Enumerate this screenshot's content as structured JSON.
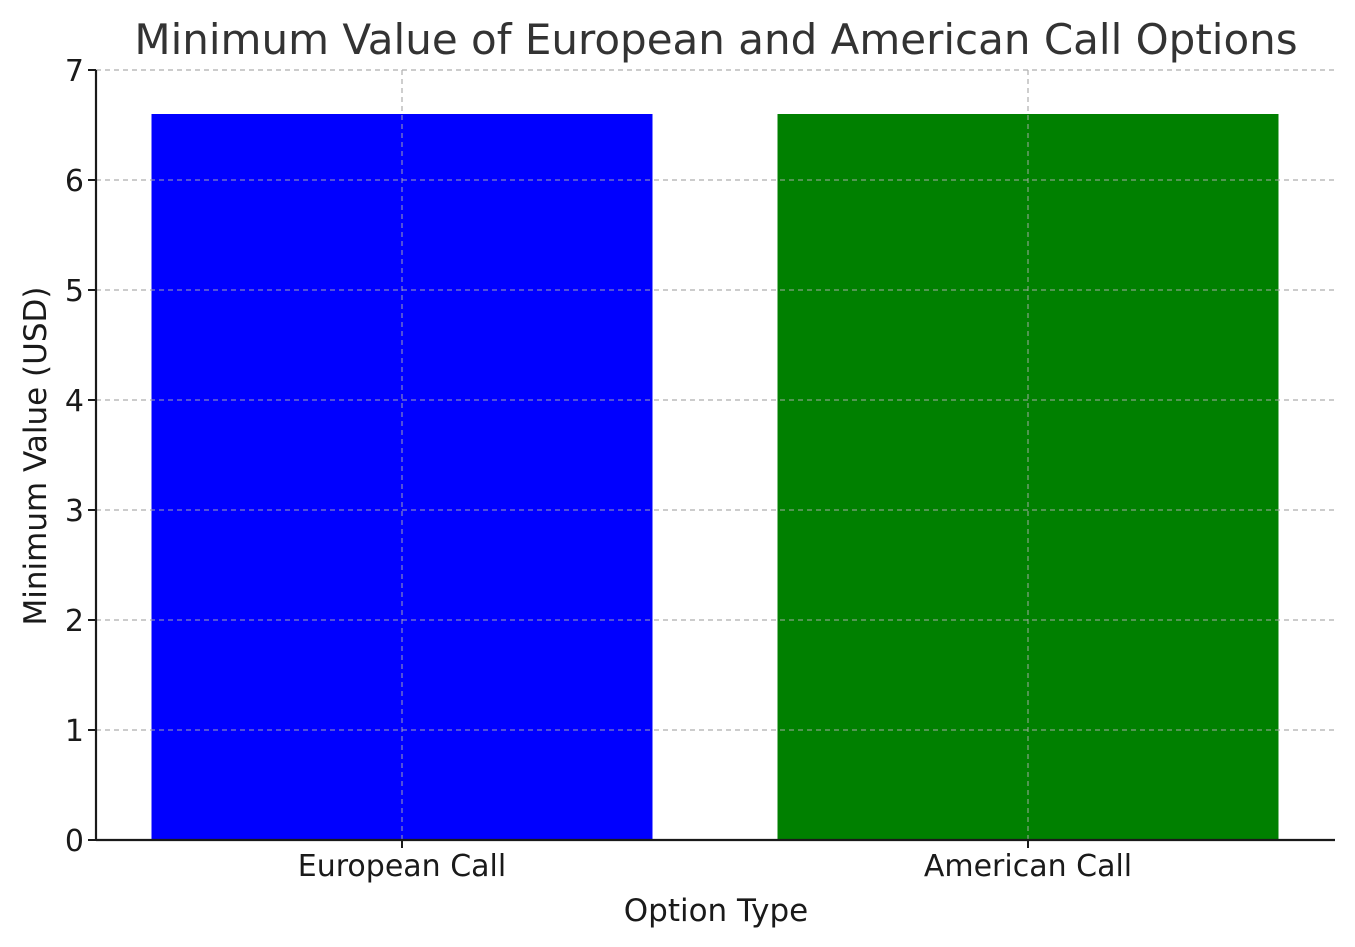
{
  "chart_data": {
    "type": "bar",
    "title": "Minimum Value of European and American Call Options",
    "xlabel": "Option Type",
    "ylabel": "Minimum Value (USD)",
    "categories": [
      "European Call",
      "American Call"
    ],
    "values": [
      6.6,
      6.6
    ],
    "colors": [
      "#0000ff",
      "#008000"
    ],
    "ylim": [
      0,
      7
    ],
    "yticks": [
      "0",
      "1",
      "2",
      "3",
      "4",
      "5",
      "6",
      "7"
    ],
    "grid": true
  }
}
